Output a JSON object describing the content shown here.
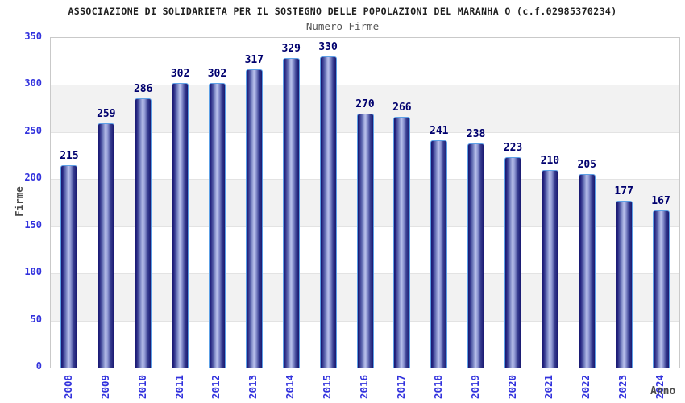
{
  "chart_data": {
    "type": "bar",
    "title": "ASSOCIAZIONE DI SOLIDARIETA PER IL SOSTEGNO DELLE POPOLAZIONI DEL MARANHA O (c.f.02985370234)",
    "subtitle": "Numero Firme",
    "xlabel": "Anno",
    "ylabel": "Firme",
    "categories": [
      "2008",
      "2009",
      "2010",
      "2011",
      "2012",
      "2013",
      "2014",
      "2015",
      "2016",
      "2017",
      "2018",
      "2019",
      "2020",
      "2021",
      "2022",
      "2023",
      "2024"
    ],
    "values": [
      215,
      259,
      286,
      302,
      302,
      317,
      329,
      330,
      270,
      266,
      241,
      238,
      223,
      210,
      205,
      177,
      167
    ],
    "ylim": [
      0,
      350
    ],
    "yticks": [
      0,
      50,
      100,
      150,
      200,
      250,
      300,
      350
    ],
    "grid": true,
    "legend": "none",
    "background_bands": "alternating gray/white every 50 units",
    "bar_style": "3d-cylinder-gradient"
  },
  "colors": {
    "tick_label": "#3232dd",
    "value_label": "#00006e",
    "axis_label": "#4a4a4a",
    "title": "#1f1f1f",
    "subtitle": "#555555",
    "band": "#f2f2f2",
    "gridline": "#e3e3e3",
    "plot_border": "#c9c9c9",
    "bar_border": "#5da0e6",
    "bar_dark": "#191970",
    "bar_light": "#bac2ec"
  }
}
